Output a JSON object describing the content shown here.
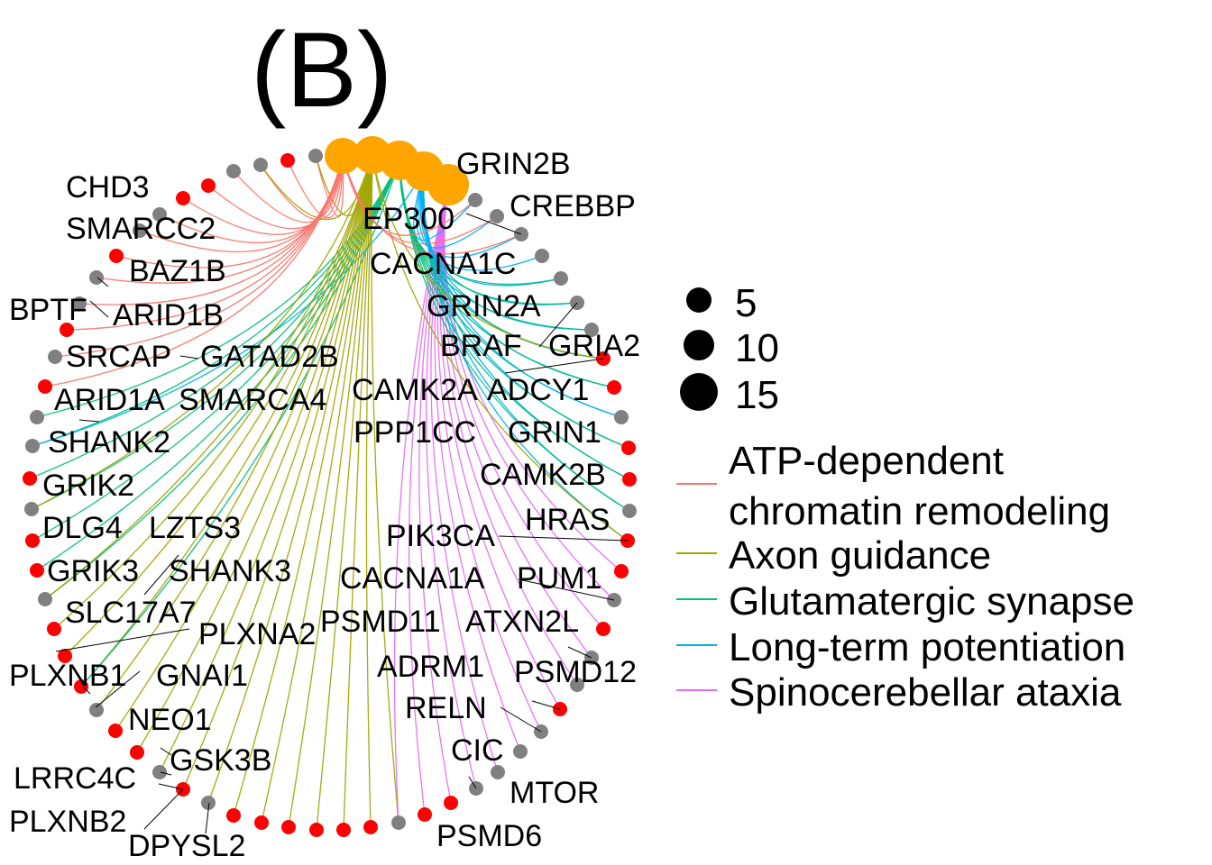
{
  "panel_label": "(B)",
  "colors": {
    "category_node": "#FFA500",
    "gene_red": "#FF0000",
    "gene_grey": "#808080",
    "edge_atp": "#F8766D",
    "edge_axon": "#A3A500",
    "edge_glut": "#00BF7D",
    "edge_ltp": "#00B0F6",
    "edge_sca": "#E76BF3"
  },
  "size_legend": {
    "items": [
      "5",
      "10",
      "15"
    ]
  },
  "edge_legend": {
    "items": [
      {
        "label_lines": [
          "ATP-dependent",
          "chromatin remodeling"
        ],
        "color_key": "edge_atp"
      },
      {
        "label_lines": [
          "Axon guidance"
        ],
        "color_key": "edge_axon"
      },
      {
        "label_lines": [
          "Glutamatergic synapse"
        ],
        "color_key": "edge_glut"
      },
      {
        "label_lines": [
          "Long-term potentiation"
        ],
        "color_key": "edge_ltp"
      },
      {
        "label_lines": [
          "Spinocerebellar ataxia"
        ],
        "color_key": "edge_sca"
      }
    ]
  },
  "gene_labels": [
    "GRIN2B",
    "CREBBP",
    "EP300",
    "CACNA1C",
    "GRIN2A",
    "BRAF",
    "GRIA2",
    "CAMK2A",
    "ADCY1",
    "PPP1CC",
    "GRIN1",
    "CAMK2B",
    "HRAS",
    "PIK3CA",
    "CACNA1A",
    "PUM1",
    "PSMD11",
    "ATXN2L",
    "ADRM1",
    "PSMD12",
    "RELN",
    "CIC",
    "MTOR",
    "PSMD6",
    "CHD3",
    "SMARCC2",
    "BAZ1B",
    "BPTF",
    "ARID1B",
    "SRCAP",
    "GATAD2B",
    "ARID1A",
    "SMARCA4",
    "SHANK2",
    "GRIK2",
    "DLG4",
    "LZTS3",
    "GRIK3",
    "SHANK3",
    "SLC17A7",
    "PLXNA2",
    "PLXNB1",
    "GNAI1",
    "NEO1",
    "GSK3B",
    "LRRC4C",
    "PLXNB2",
    "DPYSL2"
  ]
}
